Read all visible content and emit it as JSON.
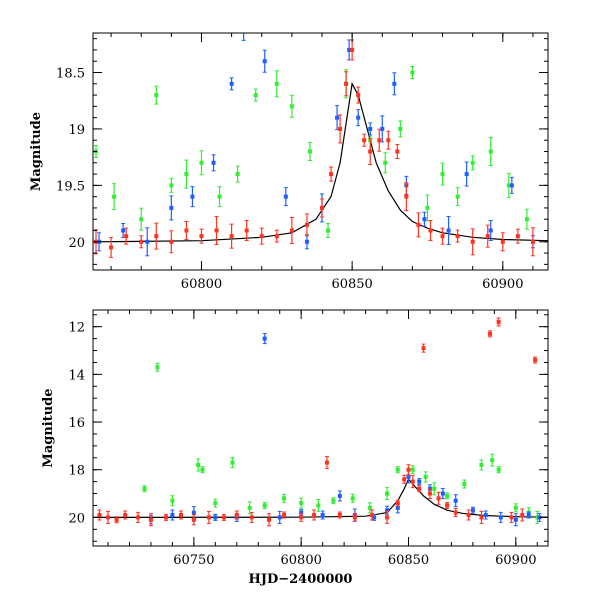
{
  "chart_data": [
    {
      "type": "scatter",
      "panel": "top",
      "title": "",
      "xlabel": "",
      "ylabel": "Magnitude",
      "xlim": [
        60764,
        60915
      ],
      "ylim": [
        20.25,
        18.15
      ],
      "y_inverted": true,
      "xticks_major": [
        60800,
        60850,
        60900
      ],
      "xtick_labels": [
        "60800",
        "60850",
        "60900"
      ],
      "yticks_major": [
        18.5,
        19,
        19.5,
        20
      ],
      "ytick_labels": [
        "18.5",
        "19",
        "19.5",
        "20"
      ],
      "grid": false,
      "legend": "none",
      "series": [
        {
          "color": "#33ee33",
          "x": [
            60765,
            60771,
            60780,
            60785,
            60790,
            60795,
            60800,
            60806,
            60812,
            60818,
            60825,
            60830,
            60836,
            60842,
            60848,
            60856,
            60861,
            60866,
            60870,
            60875,
            60880,
            60885,
            60890,
            60896,
            60902,
            60908
          ],
          "y": [
            19.2,
            19.6,
            19.8,
            18.7,
            19.5,
            19.4,
            19.3,
            19.6,
            19.4,
            18.7,
            18.6,
            18.8,
            19.2,
            19.9,
            18.6,
            19.1,
            19.3,
            19.0,
            18.5,
            19.7,
            19.4,
            19.6,
            19.3,
            19.2,
            19.5,
            19.8
          ]
        },
        {
          "color": "#1f5fff",
          "x": [
            60766,
            60774,
            60782,
            60790,
            60797,
            60804,
            60810,
            60814,
            60821,
            60828,
            60835,
            60840,
            60845,
            60849,
            60852,
            60856,
            60860,
            60864,
            60868,
            60874,
            60882,
            60888,
            60896,
            60903,
            60910
          ],
          "y": [
            20.0,
            19.9,
            20.0,
            19.7,
            19.6,
            19.3,
            18.6,
            18.1,
            18.4,
            19.6,
            20.0,
            19.7,
            18.9,
            18.3,
            18.9,
            19.0,
            19.0,
            18.6,
            19.5,
            19.8,
            19.9,
            19.4,
            19.9,
            19.5,
            20.0
          ]
        },
        {
          "color": "#ff3322",
          "x": [
            60765,
            60770,
            60775,
            60780,
            60785,
            60790,
            60795,
            60800,
            60805,
            60810,
            60815,
            60820,
            60825,
            60830,
            60835,
            60840,
            60843,
            60846,
            60848,
            60850,
            60852,
            60854,
            60856,
            60859,
            60862,
            60865,
            60868,
            60872,
            60876,
            60880,
            60885,
            60890,
            60895,
            60900,
            60905,
            60910
          ],
          "y": [
            20.0,
            20.05,
            19.95,
            20.0,
            19.95,
            20.0,
            19.9,
            19.95,
            19.9,
            19.95,
            19.9,
            19.95,
            19.95,
            19.9,
            19.85,
            19.7,
            19.4,
            19.0,
            18.6,
            18.3,
            18.7,
            19.1,
            19.2,
            19.1,
            19.1,
            19.2,
            19.6,
            19.85,
            19.9,
            19.95,
            19.95,
            20.0,
            19.95,
            20.0,
            19.95,
            20.0
          ]
        }
      ],
      "model_curve": {
        "color": "#000000",
        "x": [
          60765,
          60800,
          60820,
          60830,
          60838,
          60843,
          60846,
          60848,
          60850,
          60852,
          60855,
          60858,
          60862,
          60866,
          60870,
          60875,
          60880,
          60890,
          60900,
          60915
        ],
        "y": [
          20.0,
          19.99,
          19.96,
          19.92,
          19.8,
          19.6,
          19.3,
          18.95,
          18.6,
          18.7,
          19.0,
          19.3,
          19.55,
          19.72,
          19.82,
          19.88,
          19.92,
          19.96,
          19.98,
          19.99
        ]
      }
    },
    {
      "type": "scatter",
      "panel": "bottom",
      "title": "",
      "xlabel": "HJD−2400000",
      "ylabel": "Magnitude",
      "xlim": [
        60703,
        60915
      ],
      "ylim": [
        21.2,
        11.3
      ],
      "y_inverted": true,
      "xticks_major": [
        60750,
        60800,
        60850,
        60900
      ],
      "xtick_labels": [
        "60750",
        "60800",
        "60850",
        "60900"
      ],
      "yticks_major": [
        12,
        14,
        16,
        18,
        20
      ],
      "ytick_labels": [
        "12",
        "14",
        "16",
        "18",
        "20"
      ],
      "grid": false,
      "legend": "none",
      "series": [
        {
          "color": "#33ee33",
          "x": [
            60727,
            60733,
            60740,
            60752,
            60754,
            60760,
            60768,
            60776,
            60783,
            60792,
            60800,
            60808,
            60815,
            60824,
            60832,
            60840,
            60845,
            60852,
            60858,
            60862,
            60868,
            60876,
            60884,
            60889,
            60892,
            60900,
            60906,
            60910
          ],
          "y": [
            18.8,
            13.7,
            19.3,
            17.8,
            18.0,
            19.4,
            17.7,
            19.6,
            19.5,
            19.2,
            19.4,
            19.5,
            19.3,
            19.2,
            19.6,
            19.0,
            18.0,
            18.0,
            18.3,
            18.8,
            19.1,
            18.6,
            17.8,
            17.6,
            18.0,
            19.6,
            19.8,
            20.0
          ]
        },
        {
          "color": "#1f5fff",
          "x": [
            60730,
            60740,
            60750,
            60760,
            60770,
            60783,
            60790,
            60800,
            60810,
            60818,
            60825,
            60834,
            60840,
            60845,
            60850,
            60855,
            60860,
            60866,
            60872,
            60880,
            60886,
            60893,
            60900,
            60906,
            60911
          ],
          "y": [
            20.1,
            19.9,
            19.8,
            20.0,
            20.0,
            12.5,
            20.0,
            19.8,
            19.9,
            19.1,
            19.9,
            20.0,
            19.7,
            19.6,
            18.3,
            18.5,
            18.8,
            19.0,
            19.3,
            19.7,
            19.9,
            20.0,
            20.1,
            19.9,
            20.0
          ]
        },
        {
          "color": "#ff3322",
          "x": [
            60706,
            60710,
            60714,
            60718,
            60724,
            60730,
            60737,
            60744,
            60750,
            60757,
            60764,
            60770,
            60777,
            60785,
            60792,
            60800,
            60806,
            60812,
            60818,
            60825,
            60833,
            60840,
            60845,
            60848,
            60850,
            60852,
            60855,
            60857,
            60860,
            60864,
            60868,
            60872,
            60878,
            60884,
            60888,
            60892,
            60898,
            60903,
            60909
          ],
          "y": [
            19.9,
            20.0,
            20.1,
            19.9,
            20.0,
            20.1,
            20.0,
            19.9,
            20.1,
            20.0,
            20.0,
            19.9,
            20.0,
            20.1,
            19.9,
            20.0,
            19.9,
            17.7,
            19.9,
            20.0,
            19.9,
            20.0,
            19.4,
            18.4,
            18.0,
            18.5,
            18.8,
            12.9,
            19.0,
            19.2,
            19.5,
            19.8,
            19.9,
            20.0,
            12.3,
            11.8,
            20.0,
            19.9,
            13.4
          ]
        }
      ],
      "model_curve": {
        "color": "#000000",
        "x": [
          60703,
          60800,
          60830,
          60840,
          60845,
          60848,
          60850,
          60853,
          60857,
          60862,
          60868,
          60875,
          60885,
          60900,
          60915
        ],
        "y": [
          20.0,
          19.99,
          19.95,
          19.8,
          19.3,
          18.8,
          18.4,
          18.7,
          19.1,
          19.45,
          19.7,
          19.83,
          19.92,
          19.97,
          19.99
        ]
      }
    }
  ]
}
